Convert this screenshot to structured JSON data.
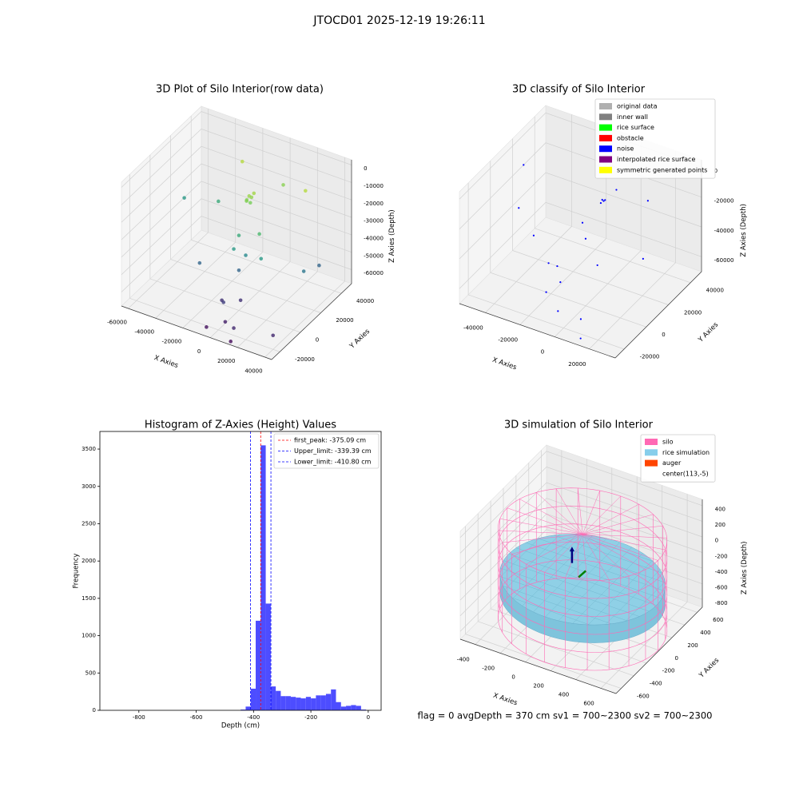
{
  "title": "JTOCD01 2025-12-19 19:26:11",
  "footer": "flag = 0     avgDepth = 370 cm  sv1 = 700~2300  sv2 = 700~2300",
  "chart_data": [
    {
      "type": "scatter3d",
      "title": "3D Plot of Silo Interior(row data)",
      "xlabel": "X Axies",
      "ylabel": "Y Axies",
      "zlabel": "Z Axies (Depth)",
      "colormap": "viridis",
      "xlim": [
        -65000,
        45000
      ],
      "ylim": [
        -28000,
        50000
      ],
      "zlim": [
        -68000,
        3000
      ],
      "xticks": [
        -60000,
        -40000,
        -20000,
        0,
        20000,
        40000
      ],
      "yticks": [
        -20000,
        0,
        20000,
        40000
      ],
      "zticks": [
        0,
        -10000,
        -20000,
        -30000,
        -40000,
        -50000,
        -60000
      ],
      "x": [
        0,
        1000,
        -1000,
        2000,
        500,
        -1500,
        -55000,
        -30000,
        -20000,
        10000,
        30000,
        15000,
        0,
        0,
        5000,
        20000,
        40000,
        40000,
        -25000,
        0,
        5000,
        -5000,
        5000,
        15000,
        -5000,
        15000,
        40000,
        0
      ],
      "y": [
        10000,
        11000,
        9000,
        12000,
        10500,
        9500,
        20000,
        20000,
        30000,
        30000,
        25000,
        0,
        0,
        -5000,
        0,
        -5000,
        10000,
        25000,
        -5000,
        0,
        -5000,
        -10000,
        -20000,
        -25000,
        -25000,
        -28000,
        -20000,
        -15000
      ],
      "z": [
        -8000,
        -9000,
        -10000,
        -7000,
        -12000,
        -11000,
        -30000,
        -25000,
        -5000,
        -10000,
        -5000,
        -20000,
        -25000,
        -30000,
        -35000,
        -30000,
        -40000,
        -45000,
        -45000,
        -45000,
        -58000,
        -58000,
        -62000,
        -60000,
        -65000,
        -66000,
        -60000,
        -55000
      ]
    },
    {
      "type": "scatter3d",
      "title": "3D classify of Silo Interior",
      "xlabel": "X Axies",
      "ylabel": "Y Axies",
      "zlabel": "Z Axies (Depth)",
      "xlim": [
        -55000,
        35000
      ],
      "ylim": [
        -28000,
        50000
      ],
      "zlim": [
        -70000,
        5000
      ],
      "xticks": [
        -40000,
        -20000,
        0,
        20000
      ],
      "yticks": [
        -20000,
        0,
        20000,
        40000
      ],
      "zticks": [
        0,
        -20000,
        -40000,
        -60000
      ],
      "legend": [
        {
          "name": "original data",
          "color": "#b0b0b0"
        },
        {
          "name": "inner wall",
          "color": "#808080"
        },
        {
          "name": "rice surface",
          "color": "#00ff00"
        },
        {
          "name": "obstacle",
          "color": "#ff0000"
        },
        {
          "name": "noise",
          "color": "#0000ff"
        },
        {
          "name": "interpolated rice surface",
          "color": "#800080"
        },
        {
          "name": "symmetric generated points",
          "color": "#ffff00"
        }
      ],
      "color": "#0000ff",
      "x": [
        0,
        500,
        -500,
        1000,
        -55000,
        -45000,
        -30000,
        -10000,
        5000,
        20000,
        30000,
        -5000,
        0,
        10000,
        -15000,
        -10000,
        0,
        10000,
        -5000,
        15000
      ],
      "y": [
        15000,
        15500,
        14500,
        16000,
        30000,
        10000,
        0,
        -10000,
        20000,
        25000,
        5000,
        5000,
        0,
        -5000,
        -10000,
        -20000,
        -25000,
        -20000,
        -15000,
        -28000
      ],
      "z": [
        -10000,
        -11000,
        -12000,
        -10500,
        -20000,
        -30000,
        -35000,
        -40000,
        -5000,
        -10000,
        -30000,
        -20000,
        -25000,
        -35000,
        -40000,
        -50000,
        -55000,
        -60000,
        -45000,
        -65000
      ]
    },
    {
      "type": "histogram",
      "title": "Histogram of Z-Axies (Height) Values",
      "xlabel": "Depth (cm)",
      "ylabel": "Frequency",
      "color": "#4d4dff",
      "xlim": [
        -936,
        45
      ],
      "ylim": [
        0,
        3736
      ],
      "xticks": [
        -800,
        -600,
        -400,
        -200,
        0
      ],
      "yticks": [
        0,
        500,
        1000,
        1500,
        2000,
        2500,
        3000,
        3500
      ],
      "bins": [
        -445,
        -427.5,
        -410,
        -392.5,
        -375,
        -357.5,
        -340,
        -322.5,
        -305,
        -287.5,
        -270,
        -252.5,
        -235,
        -217.5,
        -200,
        -182.5,
        -165,
        -147.5,
        -130,
        -112.5,
        -95,
        -77.5,
        -60,
        -42.5,
        -25,
        -7.5
      ],
      "counts": [
        10,
        50,
        290,
        1200,
        3550,
        1430,
        320,
        260,
        190,
        190,
        180,
        170,
        160,
        180,
        160,
        200,
        200,
        220,
        280,
        110,
        50,
        60,
        70,
        60,
        10
      ],
      "vlines": [
        {
          "label": "first_peak: -375.09 cm",
          "value": -375.09,
          "color": "#ff0000"
        },
        {
          "label": "Upper_limit: -339.39 cm",
          "value": -339.39,
          "color": "#0000ff"
        },
        {
          "label": "Lower_limit: -410.80 cm",
          "value": -410.8,
          "color": "#0000ff"
        }
      ]
    },
    {
      "type": "silo3d",
      "title": "3D simulation of Silo Interior",
      "xlabel": "X Axies",
      "ylabel": "Y Axies",
      "zlabel": "Z Axies (Depth)",
      "xlim": [
        -520,
        720
      ],
      "ylim": [
        -680,
        680
      ],
      "zlim": [
        -900,
        480
      ],
      "xticks": [
        -400,
        -200,
        0,
        200,
        400,
        600
      ],
      "yticks": [
        -600,
        -400,
        -200,
        0,
        200,
        400,
        600
      ],
      "zticks": [
        -800,
        -600,
        -400,
        -200,
        0,
        200,
        400
      ],
      "legend": [
        {
          "name": "silo",
          "color": "#ff69b4"
        },
        {
          "name": "rice simulation",
          "color": "#87ceeb"
        },
        {
          "name": "auger",
          "color": "#ff4500"
        },
        {
          "name": "center(113,-5)"
        }
      ],
      "center": [
        113,
        -5
      ],
      "silo": {
        "radius": 600,
        "z": [
          -900,
          250
        ]
      },
      "rice": {
        "z": [
          -560,
          -330
        ]
      }
    }
  ]
}
